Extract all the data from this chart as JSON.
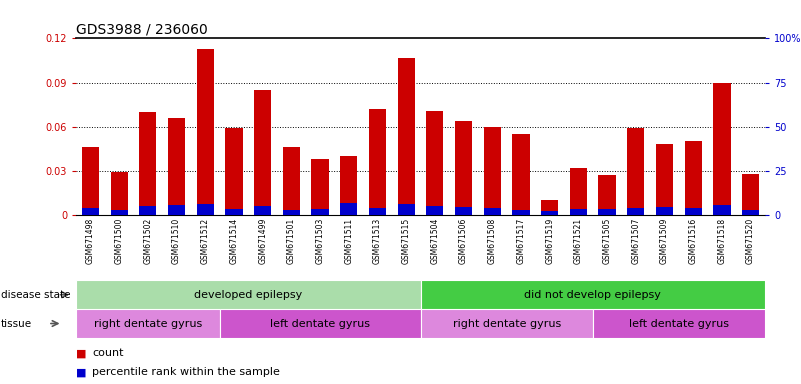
{
  "title": "GDS3988 / 236060",
  "samples": [
    "GSM671498",
    "GSM671500",
    "GSM671502",
    "GSM671510",
    "GSM671512",
    "GSM671514",
    "GSM671499",
    "GSM671501",
    "GSM671503",
    "GSM671511",
    "GSM671513",
    "GSM671515",
    "GSM671504",
    "GSM671506",
    "GSM671508",
    "GSM671517",
    "GSM671519",
    "GSM671521",
    "GSM671505",
    "GSM671507",
    "GSM671509",
    "GSM671516",
    "GSM671518",
    "GSM671520"
  ],
  "count_values": [
    0.046,
    0.029,
    0.07,
    0.066,
    0.113,
    0.059,
    0.085,
    0.046,
    0.038,
    0.04,
    0.072,
    0.107,
    0.071,
    0.064,
    0.06,
    0.055,
    0.01,
    0.032,
    0.027,
    0.059,
    0.048,
    0.05,
    0.09,
    0.028
  ],
  "percentile_values": [
    0.0048,
    0.0036,
    0.006,
    0.0066,
    0.0078,
    0.0042,
    0.006,
    0.0036,
    0.0042,
    0.0084,
    0.0048,
    0.0072,
    0.006,
    0.0054,
    0.0048,
    0.0036,
    0.003,
    0.0042,
    0.0042,
    0.0048,
    0.0054,
    0.0048,
    0.0066,
    0.0036
  ],
  "ylim_left": [
    0,
    0.12
  ],
  "ylim_right": [
    0,
    100
  ],
  "yticks_left": [
    0,
    0.03,
    0.06,
    0.09,
    0.12
  ],
  "yticks_right": [
    0,
    25,
    50,
    75,
    100
  ],
  "ytick_labels_left": [
    "0",
    "0.03",
    "0.06",
    "0.09",
    "0.12"
  ],
  "ytick_labels_right": [
    "0",
    "25",
    "50",
    "75",
    "100%"
  ],
  "bar_color_count": "#cc0000",
  "bar_color_pct": "#0000cc",
  "bar_width": 0.6,
  "disease_state_groups": [
    {
      "label": "developed epilepsy",
      "start": 0,
      "end": 11,
      "color": "#aaddaa"
    },
    {
      "label": "did not develop epilepsy",
      "start": 12,
      "end": 23,
      "color": "#44cc44"
    }
  ],
  "tissue_groups": [
    {
      "label": "right dentate gyrus",
      "start": 0,
      "end": 4,
      "color": "#dd88dd"
    },
    {
      "label": "left dentate gyrus",
      "start": 5,
      "end": 11,
      "color": "#cc55cc"
    },
    {
      "label": "right dentate gyrus",
      "start": 12,
      "end": 17,
      "color": "#dd88dd"
    },
    {
      "label": "left dentate gyrus",
      "start": 18,
      "end": 23,
      "color": "#cc55cc"
    }
  ],
  "legend_items": [
    {
      "color": "#cc0000",
      "label": "count"
    },
    {
      "color": "#0000cc",
      "label": "percentile rank within the sample"
    }
  ],
  "disease_state_label": "disease state",
  "tissue_label": "tissue",
  "title_fontsize": 10,
  "tick_fontsize": 7,
  "group_label_fontsize": 8,
  "legend_fontsize": 8
}
